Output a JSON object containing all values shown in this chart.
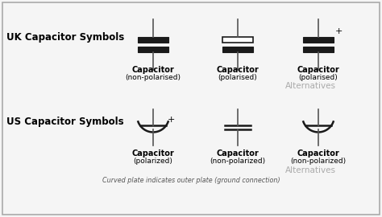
{
  "bg_color": "#f5f5f5",
  "border_color": "#aaaaaa",
  "title_uk": "UK Capacitor Symbols",
  "title_us": "US Capacitor Symbols",
  "uk_labels": [
    [
      "Capacitor",
      "(non-polarised)"
    ],
    [
      "Capacitor",
      "(polarised)"
    ],
    [
      "Capacitor",
      "(polarised)"
    ]
  ],
  "us_labels": [
    [
      "Capacitor",
      "(polarized)"
    ],
    [
      "Capacitor",
      "(non-polarized)"
    ],
    [
      "Capacitor",
      "(non-polarized)"
    ]
  ],
  "alternatives_color": "#aaaaaa",
  "footnote": "Curved plate indicates outer plate (ground connection)",
  "plate_color": "#1a1a1a",
  "line_color": "#555555"
}
